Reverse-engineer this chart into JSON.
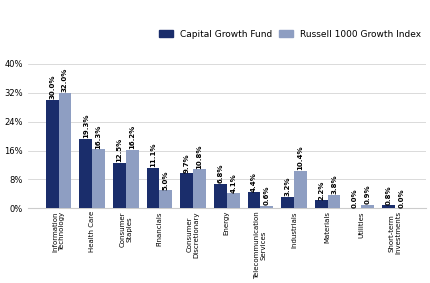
{
  "categories": [
    "Information\nTechnology",
    "Health Care",
    "Consumer\nStaples",
    "Financials",
    "Consumer\nDiscretionary",
    "Energy",
    "Telecommunication\nServices",
    "Industrials",
    "Materials",
    "Utilities",
    "Short-term\nInvestments"
  ],
  "capital_growth": [
    30.0,
    19.3,
    12.5,
    11.1,
    9.7,
    6.8,
    4.4,
    3.2,
    2.2,
    0.0,
    0.8
  ],
  "russell_index": [
    32.0,
    16.3,
    16.2,
    5.0,
    10.8,
    4.1,
    0.6,
    10.4,
    3.8,
    0.9,
    0.0
  ],
  "color_capital": "#1a2d6b",
  "color_russell": "#8e9ec2",
  "ylabel_ticks": [
    0,
    8,
    16,
    24,
    32,
    40
  ],
  "ylabel_labels": [
    "0%",
    "8%",
    "16%",
    "24%",
    "32%",
    "40%"
  ],
  "ylim": [
    0,
    43
  ],
  "legend_labels": [
    "Capital Growth Fund",
    "Russell 1000 Growth Index"
  ],
  "bar_width": 0.38,
  "label_fontsize": 5.0,
  "tick_fontsize": 6.0,
  "xtick_fontsize": 5.0,
  "legend_fontsize": 6.5,
  "background_color": "#ffffff"
}
